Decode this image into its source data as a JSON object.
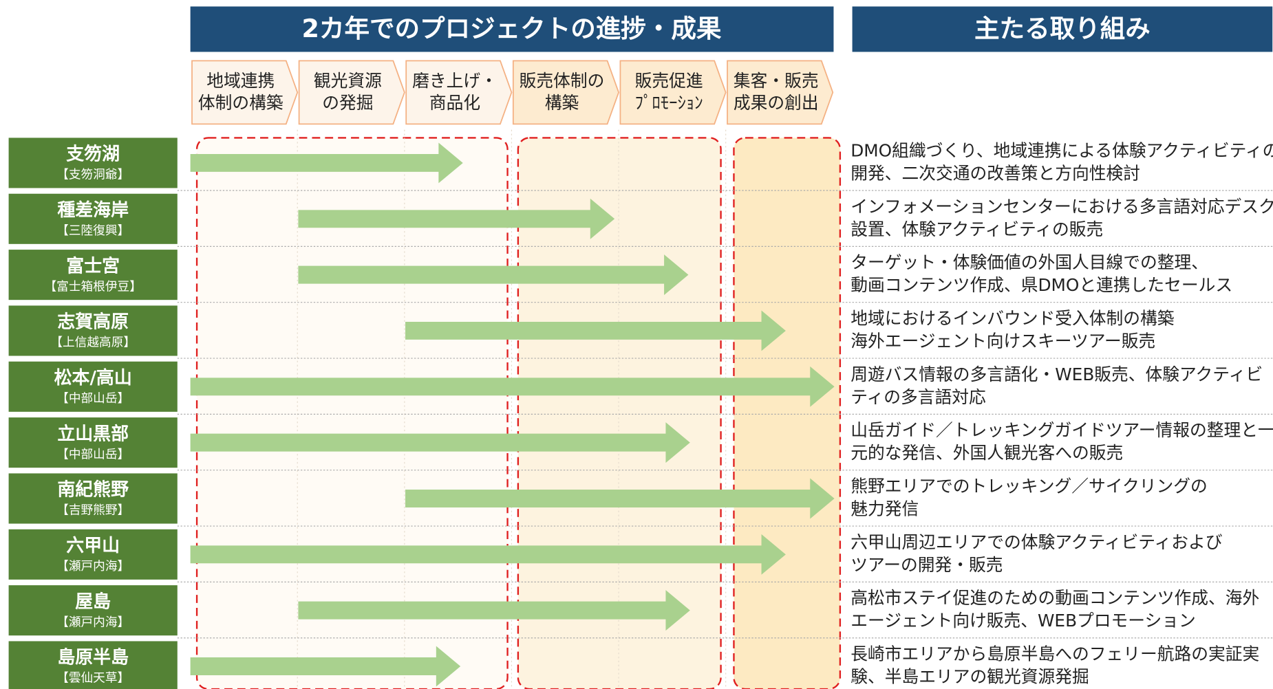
{
  "header": {
    "left_title": "2カ年でのプロジェクトの進捗・成果",
    "right_title": "主たる取り組み"
  },
  "stages": [
    {
      "lines": [
        "地域連携",
        "体制の構築"
      ]
    },
    {
      "lines": [
        "観光資源",
        "の発掘"
      ]
    },
    {
      "lines": [
        "磨き上げ・",
        "商品化"
      ]
    },
    {
      "lines": [
        "販売体制の",
        "構築"
      ]
    },
    {
      "lines": [
        "販売促進",
        "ﾌﾟﾛﾓｰｼｮﾝ"
      ]
    },
    {
      "lines": [
        "集客・販売",
        "成果の創出"
      ]
    }
  ],
  "rows": [
    {
      "name": "支笏湖",
      "region": "【支笏洞爺】",
      "description": [
        "DMO組織づくり、地域連携による体験アクティビティの",
        "開発、二次交通の改善策と方向性検討"
      ]
    },
    {
      "name": "種差海岸",
      "region": "【三陸復興】",
      "description": [
        "インフォメーションセンターにおける多言語対応デスクの",
        "設置、体験アクティビティの販売"
      ]
    },
    {
      "name": "富士宮",
      "region": "【富士箱根伊豆】",
      "description": [
        "ターゲット・体験価値の外国人目線での整理、",
        "動画コンテンツ作成、県DMOと連携したセールス"
      ]
    },
    {
      "name": "志賀高原",
      "region": "【上信越高原】",
      "description": [
        "地域におけるインバウンド受入体制の構築",
        "海外エージェント向けスキーツアー販売"
      ]
    },
    {
      "name": "松本/高山",
      "region": "【中部山岳】",
      "description": [
        "周遊バス情報の多言語化・WEB販売、体験アクティビ",
        "ティの多言語対応"
      ]
    },
    {
      "name": "立山黒部",
      "region": "【中部山岳】",
      "description": [
        "山岳ガイド／トレッキングガイドツアー情報の整理と一",
        "元的な発信、外国人観光客への販売"
      ]
    },
    {
      "name": "南紀熊野",
      "region": "【吉野熊野】",
      "description": [
        "熊野エリアでのトレッキング／サイクリングの",
        "魅力発信"
      ]
    },
    {
      "name": "六甲山",
      "region": "【瀬戸内海】",
      "description": [
        "六甲山周辺エリアでの体験アクティビティおよび",
        "ツアーの開発・販売"
      ]
    },
    {
      "name": "屋島",
      "region": "【瀬戸内海】",
      "description": [
        "高松市ステイ促進のための動画コンテンツ作成、海外",
        "エージェント向け販売、WEBプロモーション"
      ]
    },
    {
      "name": "島原半島",
      "region": "【雲仙天草】",
      "description": [
        "長崎市エリアから島原半島へのフェリー航路の実証実",
        "験、半島エリアの観光資源発掘"
      ]
    }
  ]
}
